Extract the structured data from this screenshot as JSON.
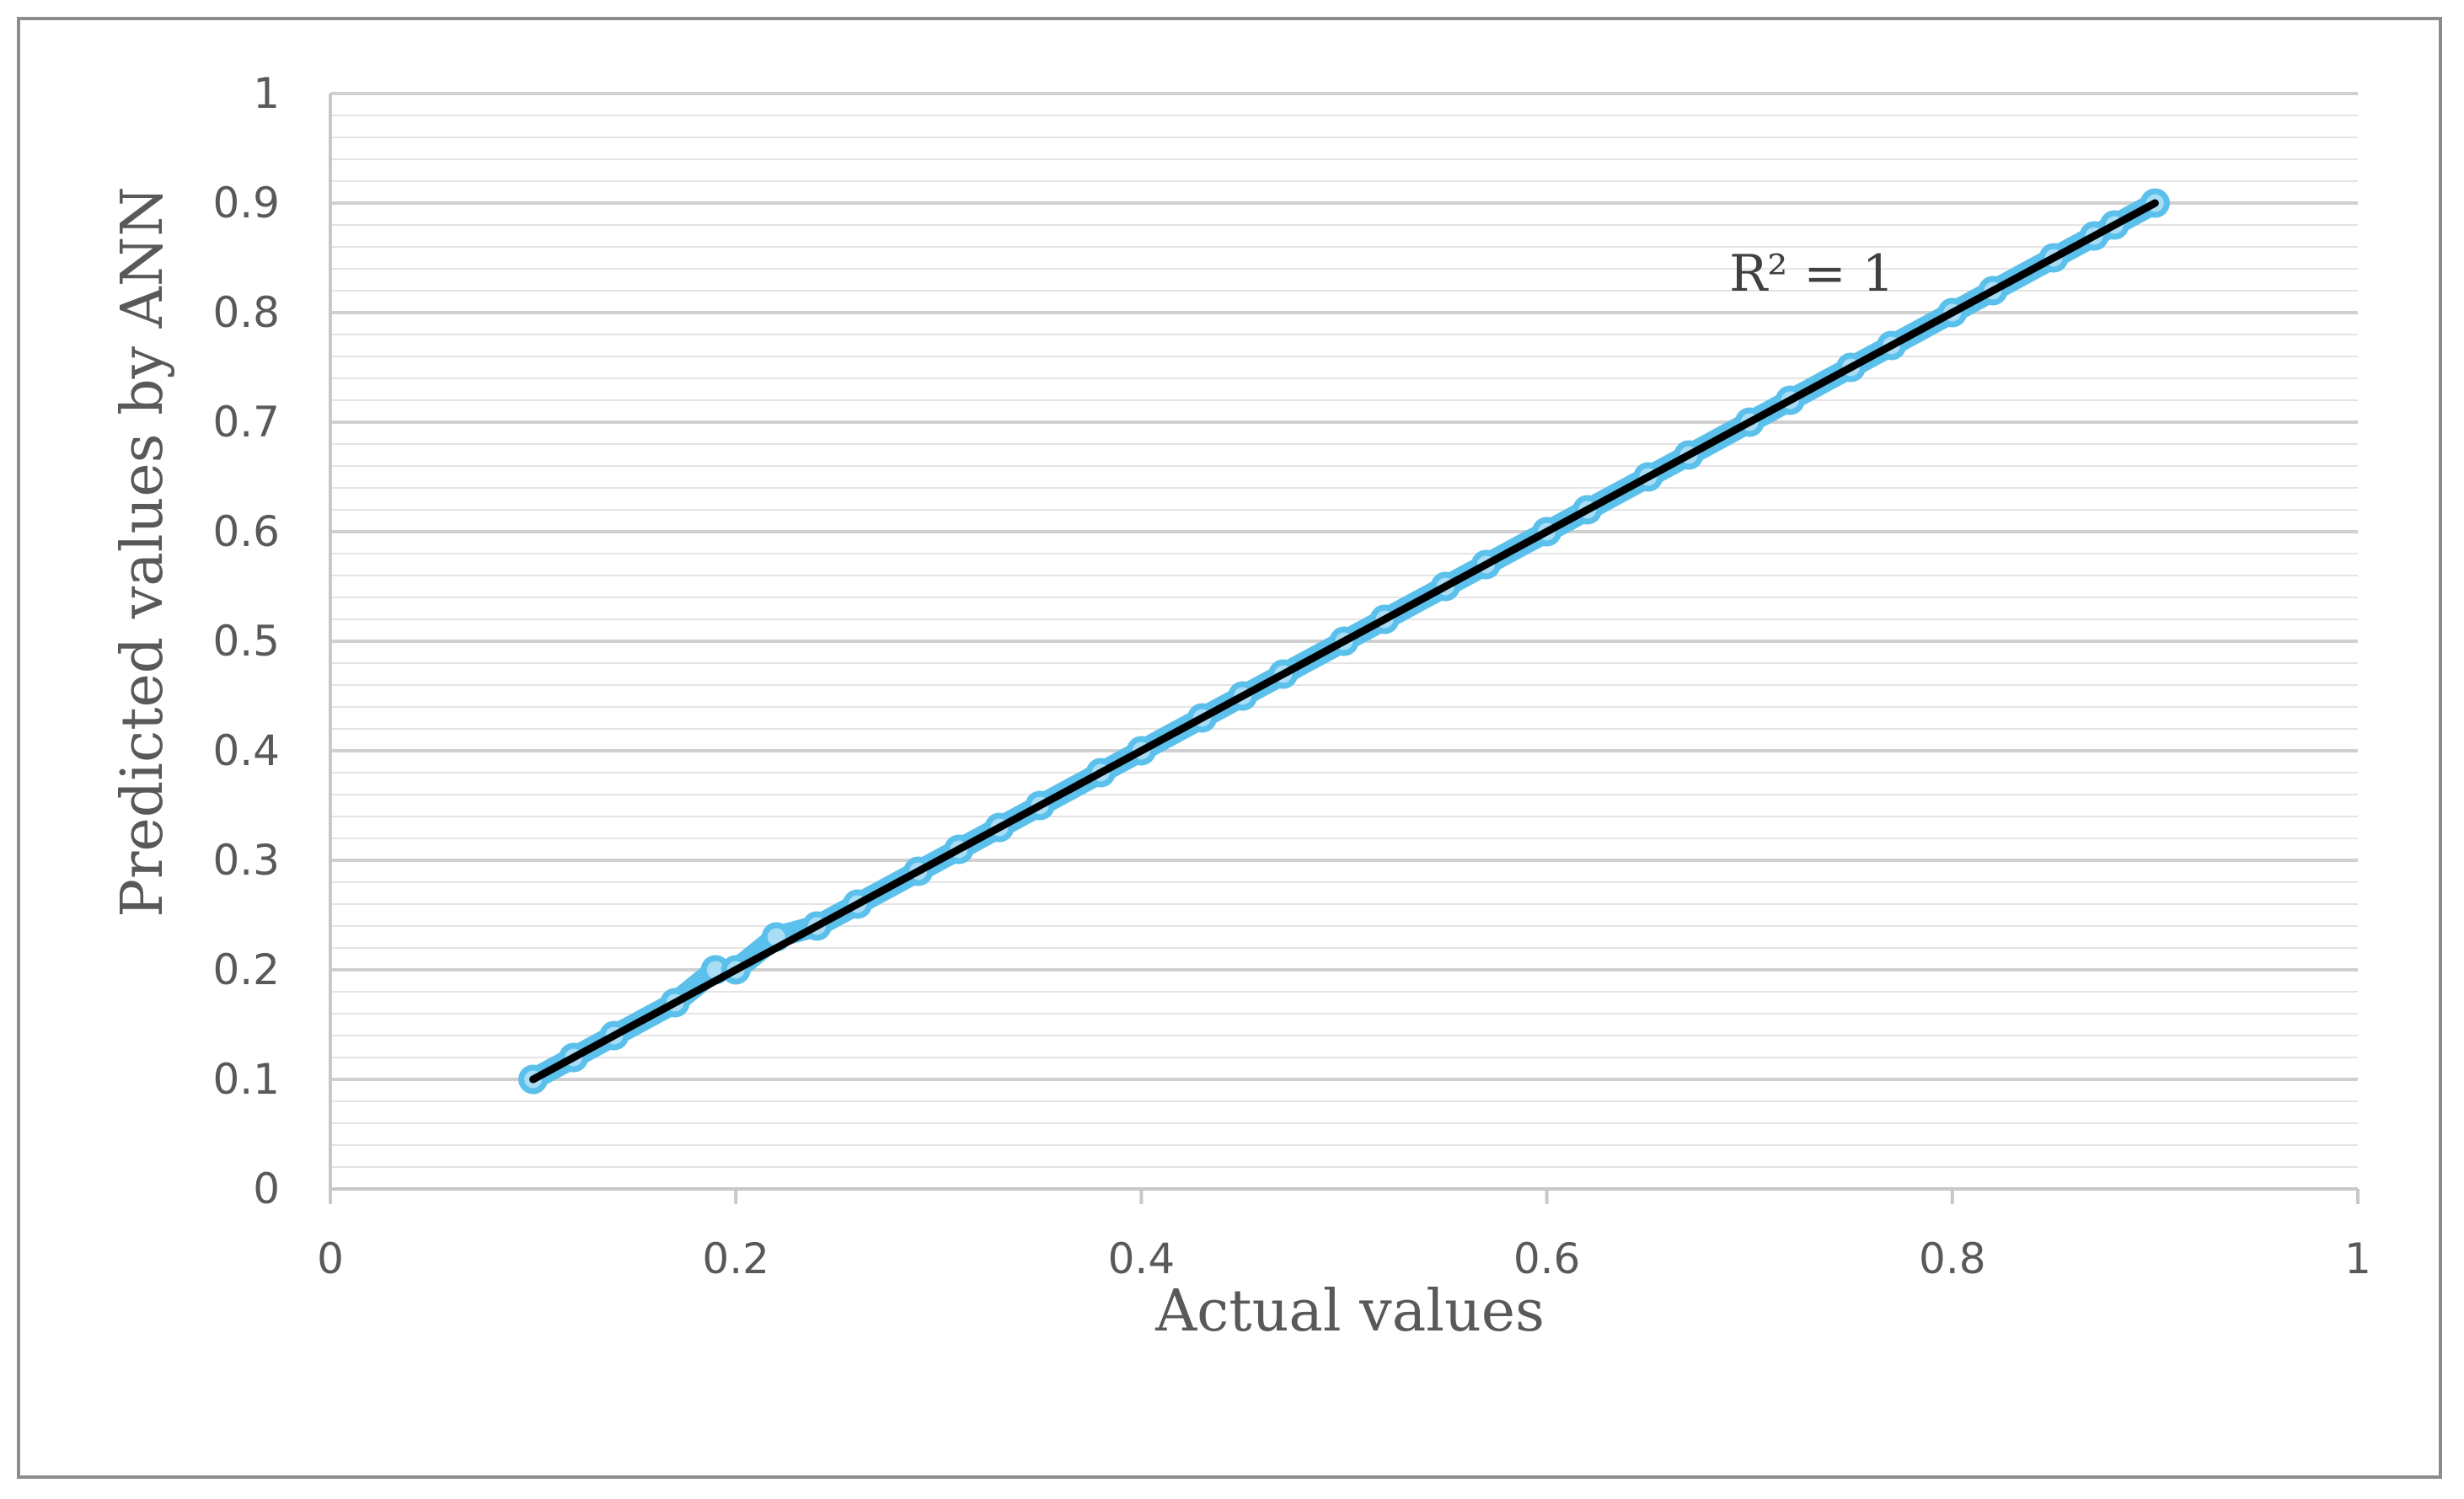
{
  "chart_data": {
    "type": "scatter",
    "title": "",
    "xlabel": "Actual values",
    "ylabel": "Predicted values by ANN",
    "xlim": [
      0,
      1
    ],
    "ylim": [
      0,
      1
    ],
    "x_ticks": [
      "0",
      "0.2",
      "0.4",
      "0.6",
      "0.8",
      "1"
    ],
    "y_ticks": [
      "0",
      "0.1",
      "0.2",
      "0.3",
      "0.4",
      "0.5",
      "0.6",
      "0.7",
      "0.8",
      "0.9",
      "1"
    ],
    "grid": true,
    "minor_grid": true,
    "legend": "none",
    "series": [
      {
        "color": "#5bc0eb",
        "points": [
          [
            0.1,
            0.1
          ],
          [
            0.12,
            0.12
          ],
          [
            0.14,
            0.14
          ],
          [
            0.17,
            0.17
          ],
          [
            0.19,
            0.2
          ],
          [
            0.2,
            0.2
          ],
          [
            0.22,
            0.23
          ],
          [
            0.24,
            0.24
          ],
          [
            0.26,
            0.26
          ],
          [
            0.29,
            0.29
          ],
          [
            0.31,
            0.31
          ],
          [
            0.33,
            0.33
          ],
          [
            0.35,
            0.35
          ],
          [
            0.38,
            0.38
          ],
          [
            0.4,
            0.4
          ],
          [
            0.43,
            0.43
          ],
          [
            0.45,
            0.45
          ],
          [
            0.47,
            0.47
          ],
          [
            0.5,
            0.5
          ],
          [
            0.52,
            0.52
          ],
          [
            0.55,
            0.55
          ],
          [
            0.57,
            0.57
          ],
          [
            0.6,
            0.6
          ],
          [
            0.62,
            0.62
          ],
          [
            0.65,
            0.65
          ],
          [
            0.67,
            0.67
          ],
          [
            0.7,
            0.7
          ],
          [
            0.72,
            0.72
          ],
          [
            0.75,
            0.75
          ],
          [
            0.77,
            0.77
          ],
          [
            0.8,
            0.8
          ],
          [
            0.82,
            0.82
          ],
          [
            0.85,
            0.85
          ],
          [
            0.87,
            0.87
          ],
          [
            0.88,
            0.88
          ],
          [
            0.9,
            0.9
          ]
        ]
      }
    ],
    "trendline": {
      "color": "#000000",
      "x": [
        0.1,
        0.9
      ],
      "y": [
        0.1,
        0.9
      ],
      "label": "R² = 1",
      "label_at": [
        0.69,
        0.82
      ]
    }
  }
}
